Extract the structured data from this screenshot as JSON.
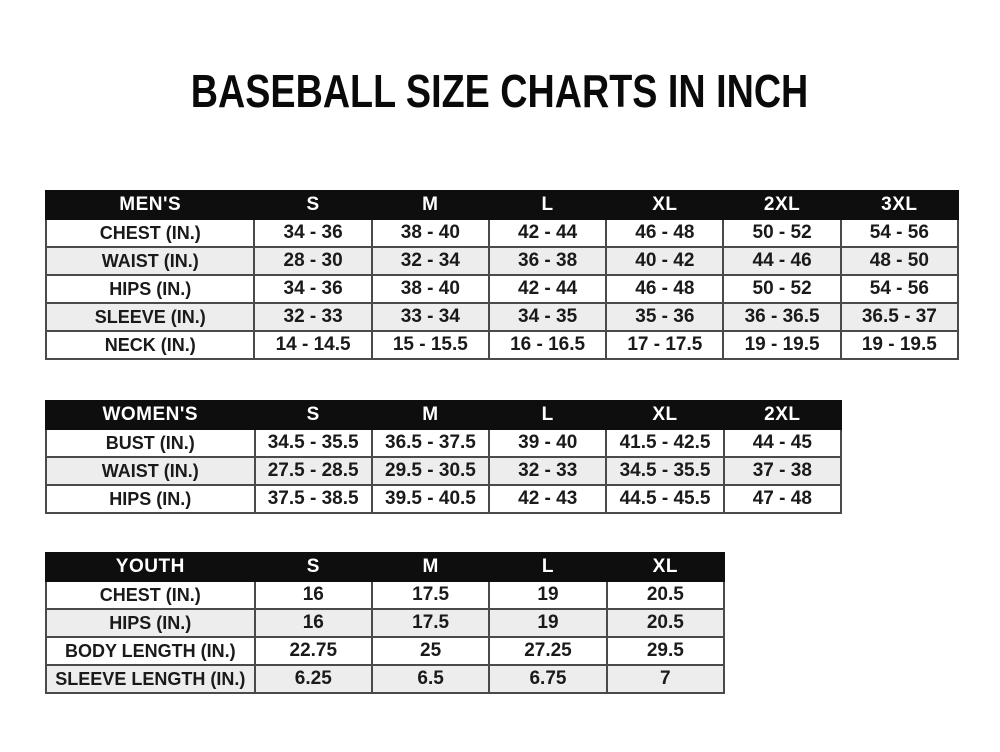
{
  "title": "BASEBALL SIZE CHARTS IN INCH",
  "colors": {
    "header_bg": "#0e0e0e",
    "header_text": "#ffffff",
    "row_bg": "#ffffff",
    "row_alt_bg": "#ededed",
    "border": "#4a4a4a",
    "text": "#1a1a1a",
    "page_bg": "#ffffff"
  },
  "tables": [
    {
      "id": "mens",
      "header": [
        "MEN'S",
        "S",
        "M",
        "L",
        "XL",
        "2XL",
        "3XL"
      ],
      "rows": [
        [
          "CHEST (IN.)",
          "34 - 36",
          "38 - 40",
          "42 - 44",
          "46 - 48",
          "50 - 52",
          "54 - 56"
        ],
        [
          "WAIST (IN.)",
          "28 - 30",
          "32 - 34",
          "36 - 38",
          "40 - 42",
          "44 - 46",
          "48 - 50"
        ],
        [
          "HIPS (IN.)",
          "34 - 36",
          "38 - 40",
          "42 - 44",
          "46 - 48",
          "50 - 52",
          "54 - 56"
        ],
        [
          "SLEEVE (IN.)",
          "32 - 33",
          "33 - 34",
          "34 - 35",
          "35 - 36",
          "36 - 36.5",
          "36.5 - 37"
        ],
        [
          "NECK (IN.)",
          "14 - 14.5",
          "15 - 15.5",
          "16 - 16.5",
          "17 - 17.5",
          "19 - 19.5",
          "19 - 19.5"
        ]
      ]
    },
    {
      "id": "womens",
      "header": [
        "WOMEN'S",
        "S",
        "M",
        "L",
        "XL",
        "2XL"
      ],
      "rows": [
        [
          "BUST (IN.)",
          "34.5 - 35.5",
          "36.5 - 37.5",
          "39 - 40",
          "41.5 - 42.5",
          "44 - 45"
        ],
        [
          "WAIST (IN.)",
          "27.5 - 28.5",
          "29.5 - 30.5",
          "32 - 33",
          "34.5 - 35.5",
          "37 - 38"
        ],
        [
          "HIPS (IN.)",
          "37.5 - 38.5",
          "39.5 - 40.5",
          "42 - 43",
          "44.5 - 45.5",
          "47 - 48"
        ]
      ]
    },
    {
      "id": "youth",
      "header": [
        "YOUTH",
        "S",
        "M",
        "L",
        "XL"
      ],
      "rows": [
        [
          "CHEST (IN.)",
          "16",
          "17.5",
          "19",
          "20.5"
        ],
        [
          "HIPS (IN.)",
          "16",
          "17.5",
          "19",
          "20.5"
        ],
        [
          "BODY LENGTH (IN.)",
          "22.75",
          "25",
          "27.25",
          "29.5"
        ],
        [
          "SLEEVE LENGTH (IN.)",
          "6.25",
          "6.5",
          "6.75",
          "7"
        ]
      ]
    }
  ]
}
